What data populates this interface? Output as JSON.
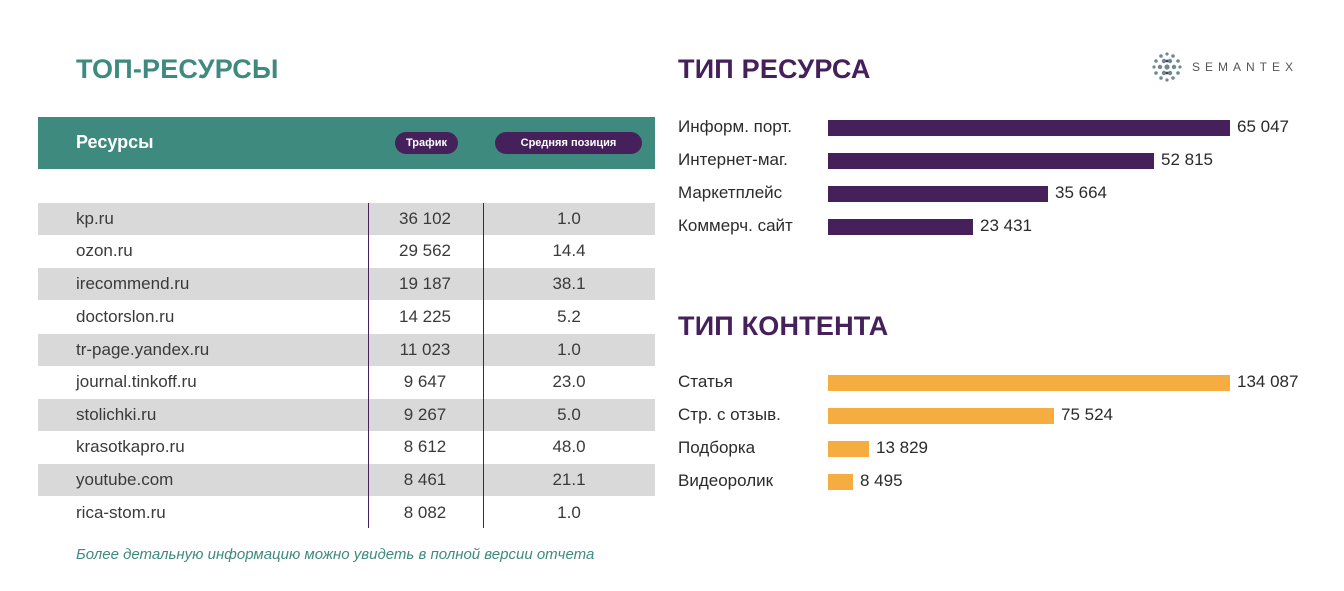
{
  "titles": {
    "left": "ТОП-РЕСУРСЫ",
    "resource_type": "ТИП РЕСУРСА",
    "content_type": "ТИП КОНТЕНТА"
  },
  "logo": {
    "text": "SEMANTEX"
  },
  "table": {
    "headers": {
      "name": "Ресурсы",
      "traffic": "Трафик",
      "position": "Средняя позиция"
    },
    "rows": [
      {
        "name": "kp.ru",
        "traffic": "36 102",
        "position": "1.0"
      },
      {
        "name": "ozon.ru",
        "traffic": "29 562",
        "position": "14.4"
      },
      {
        "name": "irecommend.ru",
        "traffic": "19 187",
        "position": "38.1"
      },
      {
        "name": "doctorslon.ru",
        "traffic": "14 225",
        "position": "5.2"
      },
      {
        "name": "tr-page.yandex.ru",
        "traffic": "11 023",
        "position": "1.0"
      },
      {
        "name": "journal.tinkoff.ru",
        "traffic": "9 647",
        "position": "23.0"
      },
      {
        "name": "stolichki.ru",
        "traffic": "9 267",
        "position": "5.0"
      },
      {
        "name": "krasotkapro.ru",
        "traffic": "8 612",
        "position": "48.0"
      },
      {
        "name": "youtube.com",
        "traffic": "8 461",
        "position": "21.1"
      },
      {
        "name": "rica-stom.ru",
        "traffic": "8 082",
        "position": "1.0"
      }
    ]
  },
  "note": "Более детальную информацию можно увидеть в полной версии отчета",
  "chart_data": [
    {
      "type": "bar",
      "orientation": "horizontal",
      "title": "ТИП РЕСУРСА",
      "categories": [
        "Информ. порт.",
        "Интернет-маг.",
        "Маркетплейс",
        "Коммерч. сайт"
      ],
      "values": [
        65047,
        52815,
        35664,
        23431
      ],
      "value_labels": [
        "65 047",
        "52 815",
        "35 664",
        "23 431"
      ],
      "color": "#45205a"
    },
    {
      "type": "bar",
      "orientation": "horizontal",
      "title": "ТИП КОНТЕНТА",
      "categories": [
        "Статья",
        "Стр. с отзыв.",
        "Подборка",
        "Видеоролик"
      ],
      "values": [
        134087,
        75524,
        13829,
        8495
      ],
      "value_labels": [
        "134 087",
        "75 524",
        "13 829",
        "8 495"
      ],
      "color": "#f5ad42"
    }
  ]
}
